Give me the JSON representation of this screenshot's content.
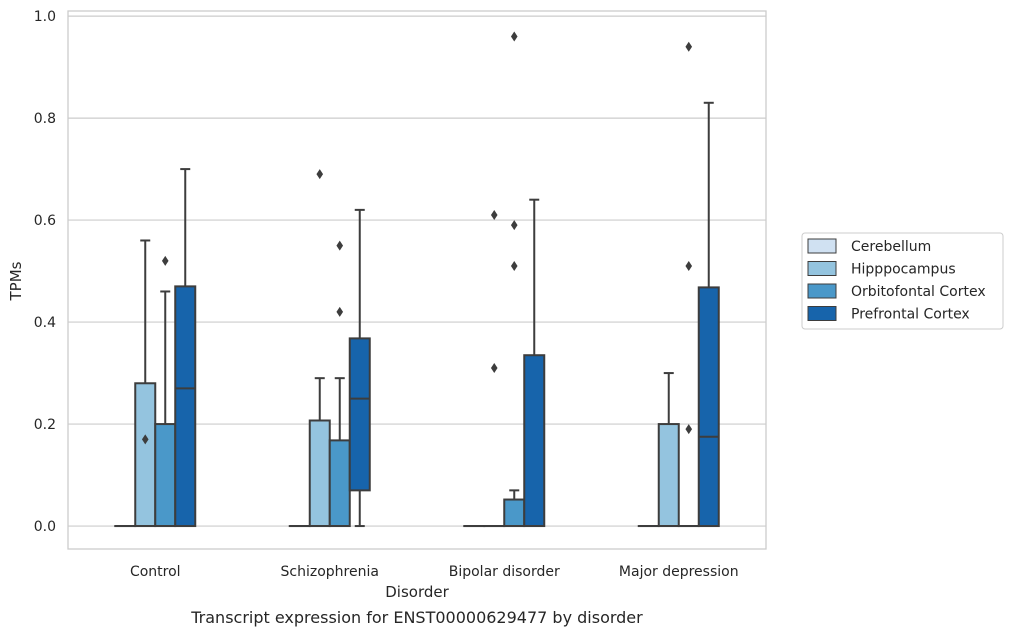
{
  "caption": "Transcript expression for ENST00000629477 by disorder",
  "chart_data": {
    "type": "box",
    "title": "",
    "xlabel": "Disorder",
    "ylabel": "TPMs",
    "ylim": [
      -0.045,
      1.01
    ],
    "yticks": [
      "0.0",
      "0.2",
      "0.4",
      "0.6",
      "0.8",
      "1.0"
    ],
    "grid": "horizontal",
    "legend_position": "right",
    "categories": [
      "Control",
      "Schizophrenia",
      "Bipolar disorder",
      "Major depression"
    ],
    "series": [
      {
        "name": "Cerebellum",
        "color": "#d0e1f2",
        "boxes": [
          {
            "q1": 0,
            "median": 0,
            "q3": 0,
            "whisker_low": 0,
            "whisker_high": 0,
            "outliers": []
          },
          {
            "q1": 0,
            "median": 0,
            "q3": 0,
            "whisker_low": 0,
            "whisker_high": 0,
            "outliers": []
          },
          {
            "q1": 0,
            "median": 0,
            "q3": 0,
            "whisker_low": 0,
            "whisker_high": 0,
            "outliers": []
          },
          {
            "q1": 0,
            "median": 0,
            "q3": 0,
            "whisker_low": 0,
            "whisker_high": 0,
            "outliers": []
          }
        ]
      },
      {
        "name": "Hipppocampus",
        "color": "#94c4df",
        "boxes": [
          {
            "q1": 0,
            "median": 0,
            "q3": 0.28,
            "whisker_low": 0,
            "whisker_high": 0.56,
            "outliers": [
              0.17
            ]
          },
          {
            "q1": 0,
            "median": 0,
            "q3": 0.207,
            "whisker_low": 0,
            "whisker_high": 0.29,
            "outliers": [
              0.69
            ]
          },
          {
            "q1": 0,
            "median": 0,
            "q3": 0,
            "whisker_low": 0,
            "whisker_high": 0,
            "outliers": [
              0.31,
              0.61
            ]
          },
          {
            "q1": 0,
            "median": 0,
            "q3": 0.2,
            "whisker_low": 0,
            "whisker_high": 0.3,
            "outliers": []
          }
        ]
      },
      {
        "name": "Orbitofontal Cortex",
        "color": "#4a98c9",
        "boxes": [
          {
            "q1": 0,
            "median": 0,
            "q3": 0.2,
            "whisker_low": 0,
            "whisker_high": 0.46,
            "outliers": [
              0.52
            ]
          },
          {
            "q1": 0,
            "median": 0,
            "q3": 0.168,
            "whisker_low": 0,
            "whisker_high": 0.29,
            "outliers": [
              0.42,
              0.55
            ]
          },
          {
            "q1": 0,
            "median": 0,
            "q3": 0.052,
            "whisker_low": 0,
            "whisker_high": 0.07,
            "outliers": [
              0.51,
              0.59,
              0.96
            ]
          },
          {
            "q1": 0,
            "median": 0,
            "q3": 0,
            "whisker_low": 0,
            "whisker_high": 0,
            "outliers": [
              0.19,
              0.51,
              0.94
            ]
          }
        ]
      },
      {
        "name": "Prefrontal Cortex",
        "color": "#1764ab",
        "boxes": [
          {
            "q1": 0,
            "median": 0.27,
            "q3": 0.47,
            "whisker_low": 0,
            "whisker_high": 0.7,
            "outliers": []
          },
          {
            "q1": 0.07,
            "median": 0.25,
            "q3": 0.368,
            "whisker_low": 0,
            "whisker_high": 0.62,
            "outliers": []
          },
          {
            "q1": 0,
            "median": 0,
            "q3": 0.335,
            "whisker_low": 0,
            "whisker_high": 0.64,
            "outliers": []
          },
          {
            "q1": 0,
            "median": 0.175,
            "q3": 0.468,
            "whisker_low": 0,
            "whisker_high": 0.83,
            "outliers": []
          }
        ]
      }
    ]
  },
  "colors": {
    "edge": "#3d3d3d",
    "grid": "#cccccc",
    "frame": "#cccccc",
    "text": "#262626"
  }
}
